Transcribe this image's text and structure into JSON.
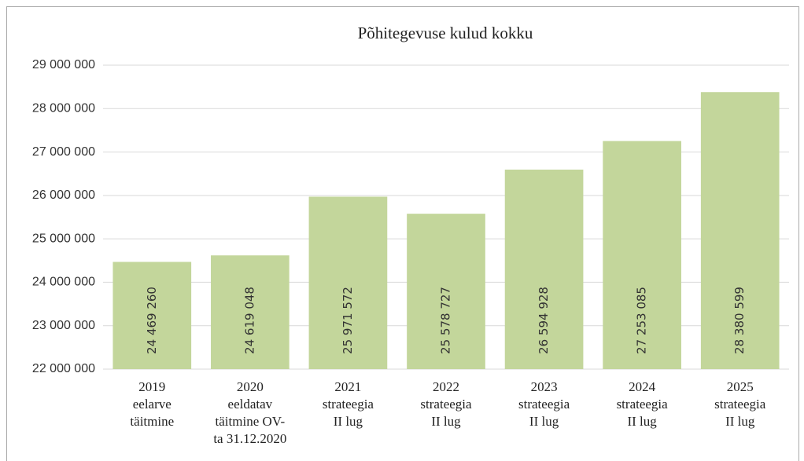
{
  "chart_data": {
    "type": "bar",
    "title": "Põhitegevuse kulud kokku",
    "categories": [
      "2019\neelarve\ntäitmine",
      "2020\neeldatav\ntäitmine OV-\nta 31.12.2020",
      "2021\nstrateegia\nII lug",
      "2022\nstrateegia\nII lug",
      "2023\nstrateegia\nII lug",
      "2024\nstrateegia\nII lug",
      "2025\nstrateegia\nII lug"
    ],
    "values": [
      24469260,
      24619048,
      25971572,
      25578727,
      26594928,
      27253085,
      28380599
    ],
    "value_labels": [
      "24 469 260",
      "24 619 048",
      "25 971 572",
      "25 578 727",
      "26 594 928",
      "27 253 085",
      "28 380 599"
    ],
    "color": "#c3d69b",
    "ylim": [
      22000000,
      29000000
    ],
    "yticks": [
      {
        "value": 22000000,
        "label": "22 000 000"
      },
      {
        "value": 23000000,
        "label": "23 000 000"
      },
      {
        "value": 24000000,
        "label": "24 000 000"
      },
      {
        "value": 25000000,
        "label": "25 000 000"
      },
      {
        "value": 26000000,
        "label": "26 000 000"
      },
      {
        "value": 27000000,
        "label": "27 000 000"
      },
      {
        "value": 28000000,
        "label": "28 000 000"
      },
      {
        "value": 29000000,
        "label": "29 000 000"
      }
    ],
    "grid": true
  }
}
